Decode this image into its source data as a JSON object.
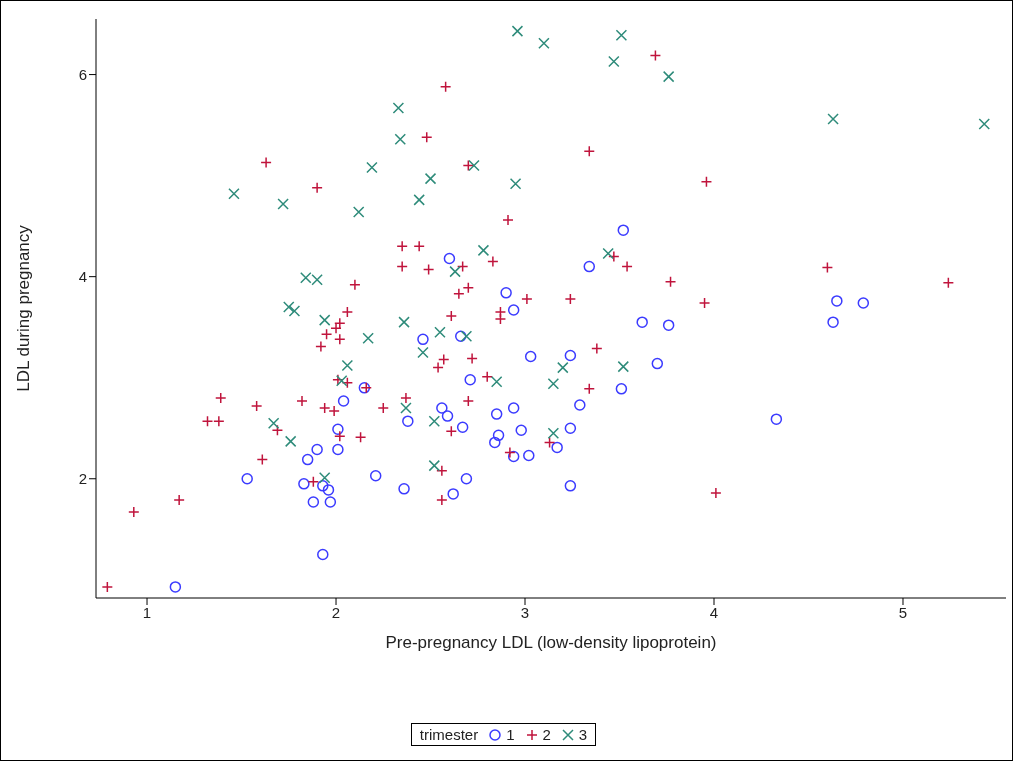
{
  "chart_data": {
    "type": "scatter",
    "xlabel": "Pre-pregnancy LDL (low-density lipoprotein)",
    "ylabel": "LDL during pregnancy",
    "legend_title": "trimester",
    "legend": "bottom",
    "xlim": [
      0.73,
      5.545
    ],
    "xticks": [
      1,
      2,
      3,
      4,
      5
    ],
    "ylim": [
      0.82,
      6.55
    ],
    "yticks": [
      2,
      4,
      6
    ],
    "grid": false,
    "series": [
      {
        "name": "1",
        "color": "#3b3bff",
        "marker": "circle",
        "x": [
          1.15,
          1.53,
          1.83,
          1.85,
          1.88,
          1.9,
          1.93,
          1.93,
          1.96,
          1.97,
          2.01,
          2.01,
          2.04,
          2.15,
          2.21,
          2.36,
          2.38,
          2.46,
          2.56,
          2.59,
          2.6,
          2.62,
          2.66,
          2.67,
          2.69,
          2.71,
          2.84,
          2.86,
          2.85,
          2.9,
          2.94,
          2.94,
          2.94,
          2.98,
          3.02,
          3.03,
          3.17,
          3.24,
          3.24,
          3.24,
          3.29,
          3.34,
          3.51,
          3.52,
          3.62,
          3.7,
          3.76,
          4.33,
          4.63,
          4.65,
          4.79
        ],
        "values": [
          0.93,
          2.0,
          1.95,
          2.19,
          1.77,
          2.29,
          1.25,
          1.93,
          1.89,
          1.77,
          2.29,
          2.49,
          2.77,
          2.9,
          2.03,
          1.9,
          2.57,
          3.38,
          2.7,
          2.62,
          4.18,
          1.85,
          3.41,
          2.51,
          2.0,
          2.98,
          2.36,
          2.43,
          2.64,
          3.84,
          3.67,
          2.7,
          2.22,
          2.48,
          2.23,
          3.21,
          2.31,
          2.5,
          1.93,
          3.22,
          2.73,
          4.1,
          2.89,
          4.46,
          3.55,
          3.14,
          3.52,
          2.59,
          3.55,
          3.76,
          3.74
        ]
      },
      {
        "name": "2",
        "color": "#c0143c",
        "marker": "plus",
        "x": [
          0.79,
          0.93,
          1.17,
          1.32,
          1.38,
          1.39,
          1.58,
          1.61,
          1.63,
          1.69,
          1.82,
          1.88,
          1.9,
          1.92,
          1.94,
          1.95,
          1.99,
          2.0,
          2.01,
          2.02,
          2.02,
          2.02,
          2.06,
          2.06,
          2.1,
          2.13,
          2.16,
          2.25,
          2.35,
          2.35,
          2.37,
          2.44,
          2.48,
          2.49,
          2.54,
          2.56,
          2.56,
          2.57,
          2.58,
          2.61,
          2.61,
          2.65,
          2.67,
          2.7,
          2.7,
          2.7,
          2.72,
          2.8,
          2.83,
          2.87,
          2.87,
          2.91,
          2.92,
          3.01,
          3.13,
          3.24,
          3.34,
          3.34,
          3.38,
          3.47,
          3.54,
          3.69,
          3.77,
          3.95,
          3.96,
          4.01,
          4.6,
          5.24
        ],
        "values": [
          0.93,
          1.67,
          1.79,
          2.57,
          2.57,
          2.8,
          2.72,
          2.19,
          5.13,
          2.48,
          2.77,
          1.97,
          4.88,
          3.31,
          2.7,
          3.43,
          2.67,
          3.49,
          2.98,
          3.54,
          2.42,
          3.38,
          3.65,
          2.95,
          3.92,
          2.41,
          2.9,
          2.7,
          4.1,
          4.3,
          2.8,
          4.3,
          5.38,
          4.07,
          3.1,
          2.08,
          1.79,
          3.18,
          5.88,
          3.61,
          2.47,
          3.83,
          4.1,
          5.1,
          2.77,
          3.89,
          3.19,
          3.01,
          4.15,
          3.65,
          3.58,
          4.56,
          2.26,
          3.78,
          2.36,
          3.78,
          5.24,
          2.89,
          3.29,
          4.2,
          4.1,
          6.19,
          3.95,
          3.74,
          4.94,
          1.86,
          4.09,
          3.94
        ]
      },
      {
        "name": "3",
        "color": "#2e8b7a",
        "marker": "cross",
        "x": [
          1.46,
          1.67,
          1.72,
          1.75,
          1.76,
          1.78,
          1.84,
          1.9,
          1.94,
          1.94,
          2.03,
          2.06,
          2.12,
          2.17,
          2.19,
          2.33,
          2.34,
          2.36,
          2.37,
          2.44,
          2.46,
          2.5,
          2.52,
          2.52,
          2.55,
          2.63,
          2.69,
          2.73,
          2.78,
          2.85,
          2.95,
          2.96,
          3.1,
          3.15,
          3.15,
          3.2,
          3.44,
          3.47,
          3.51,
          3.52,
          3.76,
          4.63,
          5.43
        ],
        "values": [
          4.82,
          2.55,
          4.72,
          3.7,
          2.37,
          3.66,
          3.99,
          3.97,
          2.01,
          3.57,
          2.97,
          3.12,
          4.64,
          3.39,
          5.08,
          5.67,
          5.36,
          3.55,
          2.7,
          4.76,
          3.25,
          4.97,
          2.57,
          2.13,
          3.45,
          4.05,
          3.41,
          5.1,
          4.26,
          2.96,
          4.92,
          6.43,
          6.31,
          2.94,
          2.45,
          3.1,
          4.23,
          6.13,
          6.39,
          3.11,
          5.98,
          5.56,
          5.51
        ]
      }
    ]
  }
}
